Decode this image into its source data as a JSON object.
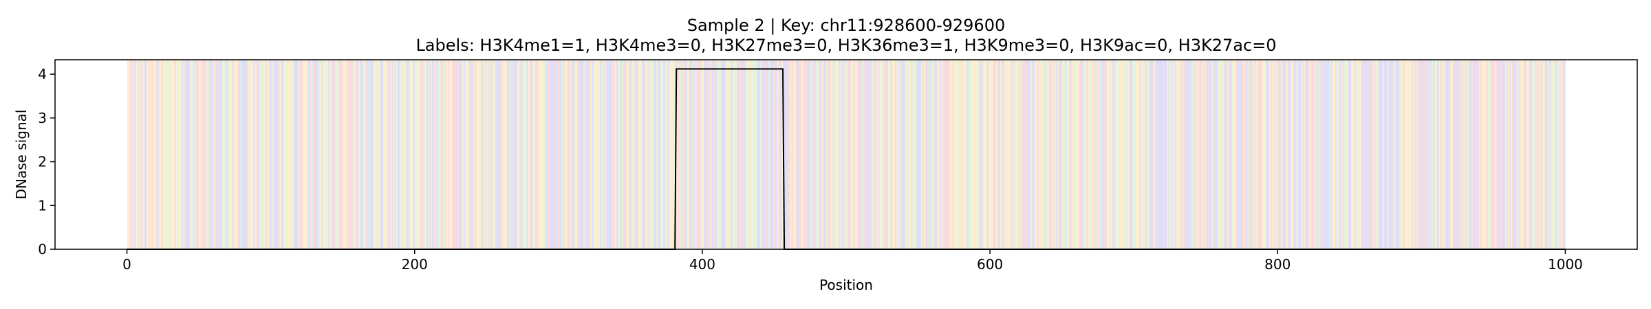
{
  "chart_data": {
    "type": "line",
    "title": "Sample 2 | Key: chr11:928600-929600",
    "subtitle": "Labels: H3K4me1=1, H3K4me3=0, H3K27me3=0, H3K36me3=1, H3K9me3=0, H3K9ac=0, H3K27ac=0",
    "xlabel": "Position",
    "ylabel": "DNase signal",
    "xlim": [
      -50,
      1050
    ],
    "ylim": [
      0,
      4.33
    ],
    "x_ticks": [
      0,
      200,
      400,
      600,
      800,
      1000
    ],
    "y_ticks": [
      0,
      1,
      2,
      3,
      4
    ],
    "grid": false,
    "line_color": "#000000",
    "background_bands": {
      "x_range": [
        0,
        1000
      ],
      "palette": [
        "#f9c6c9",
        "#c9cdf7",
        "#fbe5b6",
        "#d9ecc6"
      ],
      "opacity": 0.6
    },
    "series": [
      {
        "x": [
          0,
          381,
          382,
          456,
          457,
          1000
        ],
        "y": [
          0,
          0,
          4.12,
          4.12,
          0,
          0
        ]
      }
    ]
  }
}
